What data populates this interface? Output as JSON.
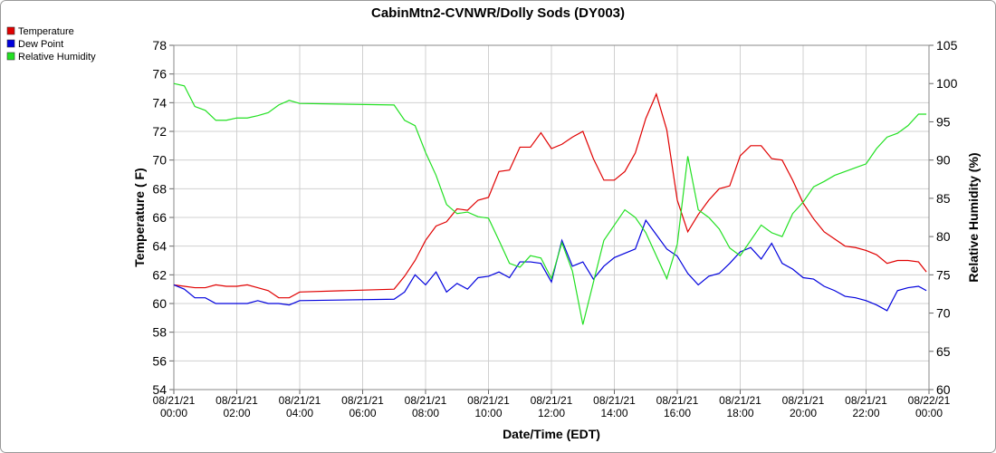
{
  "chart_data": {
    "type": "line",
    "title": "CabinMtn2-CVNWR/Dolly Sods (DY003)",
    "x_label": "Date/Time (EDT)",
    "y_label": "Temperature ( F)",
    "y2_label": "Relative Humidity (%)",
    "legend": "top-left",
    "grid": true,
    "xlim": [
      "08/21/21 00:00",
      "08/22/21 00:00"
    ],
    "xticks": [
      "08/21/21 00:00",
      "08/21/21 02:00",
      "08/21/21 04:00",
      "08/21/21 06:00",
      "08/21/21 08:00",
      "08/21/21 10:00",
      "08/21/21 12:00",
      "08/21/21 14:00",
      "08/21/21 16:00",
      "08/21/21 18:00",
      "08/21/21 20:00",
      "08/21/21 22:00",
      "08/22/21 00:00"
    ],
    "ylim": [
      54,
      78
    ],
    "yticks": [
      54,
      56,
      58,
      60,
      62,
      64,
      66,
      68,
      70,
      72,
      74,
      76,
      78
    ],
    "y2lim": [
      60,
      105
    ],
    "y2ticks": [
      60,
      65,
      70,
      75,
      80,
      85,
      90,
      95,
      100,
      105
    ],
    "x": [
      "08/21/21 00:00",
      "08/21/21 00:20",
      "08/21/21 00:40",
      "08/21/21 01:00",
      "08/21/21 01:20",
      "08/21/21 01:40",
      "08/21/21 02:00",
      "08/21/21 02:20",
      "08/21/21 02:40",
      "08/21/21 03:00",
      "08/21/21 03:20",
      "08/21/21 03:40",
      "08/21/21 04:00",
      "08/21/21 07:00",
      "08/21/21 07:20",
      "08/21/21 07:40",
      "08/21/21 08:00",
      "08/21/21 08:20",
      "08/21/21 08:40",
      "08/21/21 09:00",
      "08/21/21 09:20",
      "08/21/21 09:40",
      "08/21/21 10:00",
      "08/21/21 10:20",
      "08/21/21 10:40",
      "08/21/21 11:00",
      "08/21/21 11:20",
      "08/21/21 11:40",
      "08/21/21 12:00",
      "08/21/21 12:20",
      "08/21/21 12:40",
      "08/21/21 13:00",
      "08/21/21 13:20",
      "08/21/21 13:40",
      "08/21/21 14:00",
      "08/21/21 14:20",
      "08/21/21 14:40",
      "08/21/21 15:00",
      "08/21/21 15:20",
      "08/21/21 15:40",
      "08/21/21 16:00",
      "08/21/21 16:20",
      "08/21/21 16:40",
      "08/21/21 17:00",
      "08/21/21 17:20",
      "08/21/21 17:40",
      "08/21/21 18:00",
      "08/21/21 18:20",
      "08/21/21 18:40",
      "08/21/21 19:00",
      "08/21/21 19:20",
      "08/21/21 19:40",
      "08/21/21 20:00",
      "08/21/21 20:20",
      "08/21/21 20:40",
      "08/21/21 21:00",
      "08/21/21 21:20",
      "08/21/21 21:40",
      "08/21/21 22:00",
      "08/21/21 22:20",
      "08/21/21 22:40",
      "08/21/21 23:00",
      "08/21/21 23:20",
      "08/21/21 23:40",
      "08/21/21 23:55"
    ],
    "series": [
      {
        "name": "Temperature",
        "color": "#e00000",
        "values": [
          61.3,
          61.2,
          61.1,
          61.1,
          61.3,
          61.2,
          61.2,
          61.3,
          61.1,
          60.9,
          60.4,
          60.4,
          60.8,
          61.0,
          61.9,
          63.0,
          64.4,
          65.4,
          65.7,
          66.6,
          66.5,
          67.2,
          67.4,
          69.2,
          69.3,
          70.9,
          70.9,
          71.9,
          70.8,
          71.1,
          71.6,
          72.0,
          70.1,
          68.6,
          68.6,
          69.2,
          70.5,
          72.9,
          74.6,
          72.1,
          67.2,
          65.0,
          66.2,
          67.2,
          68.0,
          68.2,
          70.3,
          71.0,
          71.0,
          70.1,
          70.0,
          68.6,
          67.0,
          65.9,
          65.0,
          64.5,
          64.0,
          63.9,
          63.7,
          63.4,
          62.8,
          63.0,
          63.0,
          62.9,
          62.2
        ]
      },
      {
        "name": "Dew Point",
        "color": "#0000dd",
        "values": [
          61.3,
          61.0,
          60.4,
          60.4,
          60.0,
          60.0,
          60.0,
          60.0,
          60.2,
          60.0,
          60.0,
          59.9,
          60.2,
          60.3,
          60.8,
          62.0,
          61.3,
          62.2,
          60.8,
          61.4,
          61.0,
          61.8,
          61.9,
          62.2,
          61.8,
          62.9,
          62.9,
          62.8,
          61.5,
          64.4,
          62.6,
          62.9,
          61.7,
          62.6,
          63.2,
          63.5,
          63.8,
          65.8,
          64.8,
          63.8,
          63.3,
          62.1,
          61.3,
          61.9,
          62.1,
          62.8,
          63.6,
          63.9,
          63.1,
          64.2,
          62.8,
          62.4,
          61.8,
          61.7,
          61.2,
          60.9,
          60.5,
          60.4,
          60.2,
          59.9,
          59.5,
          60.9,
          61.1,
          61.2,
          60.9
        ]
      },
      {
        "name": "Relative Humidity",
        "color": "#22e022",
        "axis": "y2",
        "values": [
          100,
          99.7,
          97.0,
          96.5,
          95.2,
          95.2,
          95.5,
          95.5,
          95.8,
          96.2,
          97.2,
          97.8,
          97.4,
          97.2,
          95.2,
          94.5,
          91.0,
          88.0,
          84.2,
          83.0,
          83.2,
          82.6,
          82.4,
          79.5,
          76.5,
          76.0,
          77.5,
          77.2,
          74.5,
          79.2,
          75.5,
          68.5,
          74.0,
          79.5,
          81.5,
          83.5,
          82.5,
          80.5,
          77.5,
          74.5,
          79.0,
          90.5,
          83.5,
          82.5,
          81.0,
          78.5,
          77.5,
          79.5,
          81.5,
          80.5,
          80.0,
          83.0,
          84.5,
          86.5,
          87.2,
          88.0,
          88.5,
          89.0,
          89.5,
          91.5,
          93.0,
          93.5,
          94.5,
          96.0,
          96.0
        ]
      }
    ]
  }
}
